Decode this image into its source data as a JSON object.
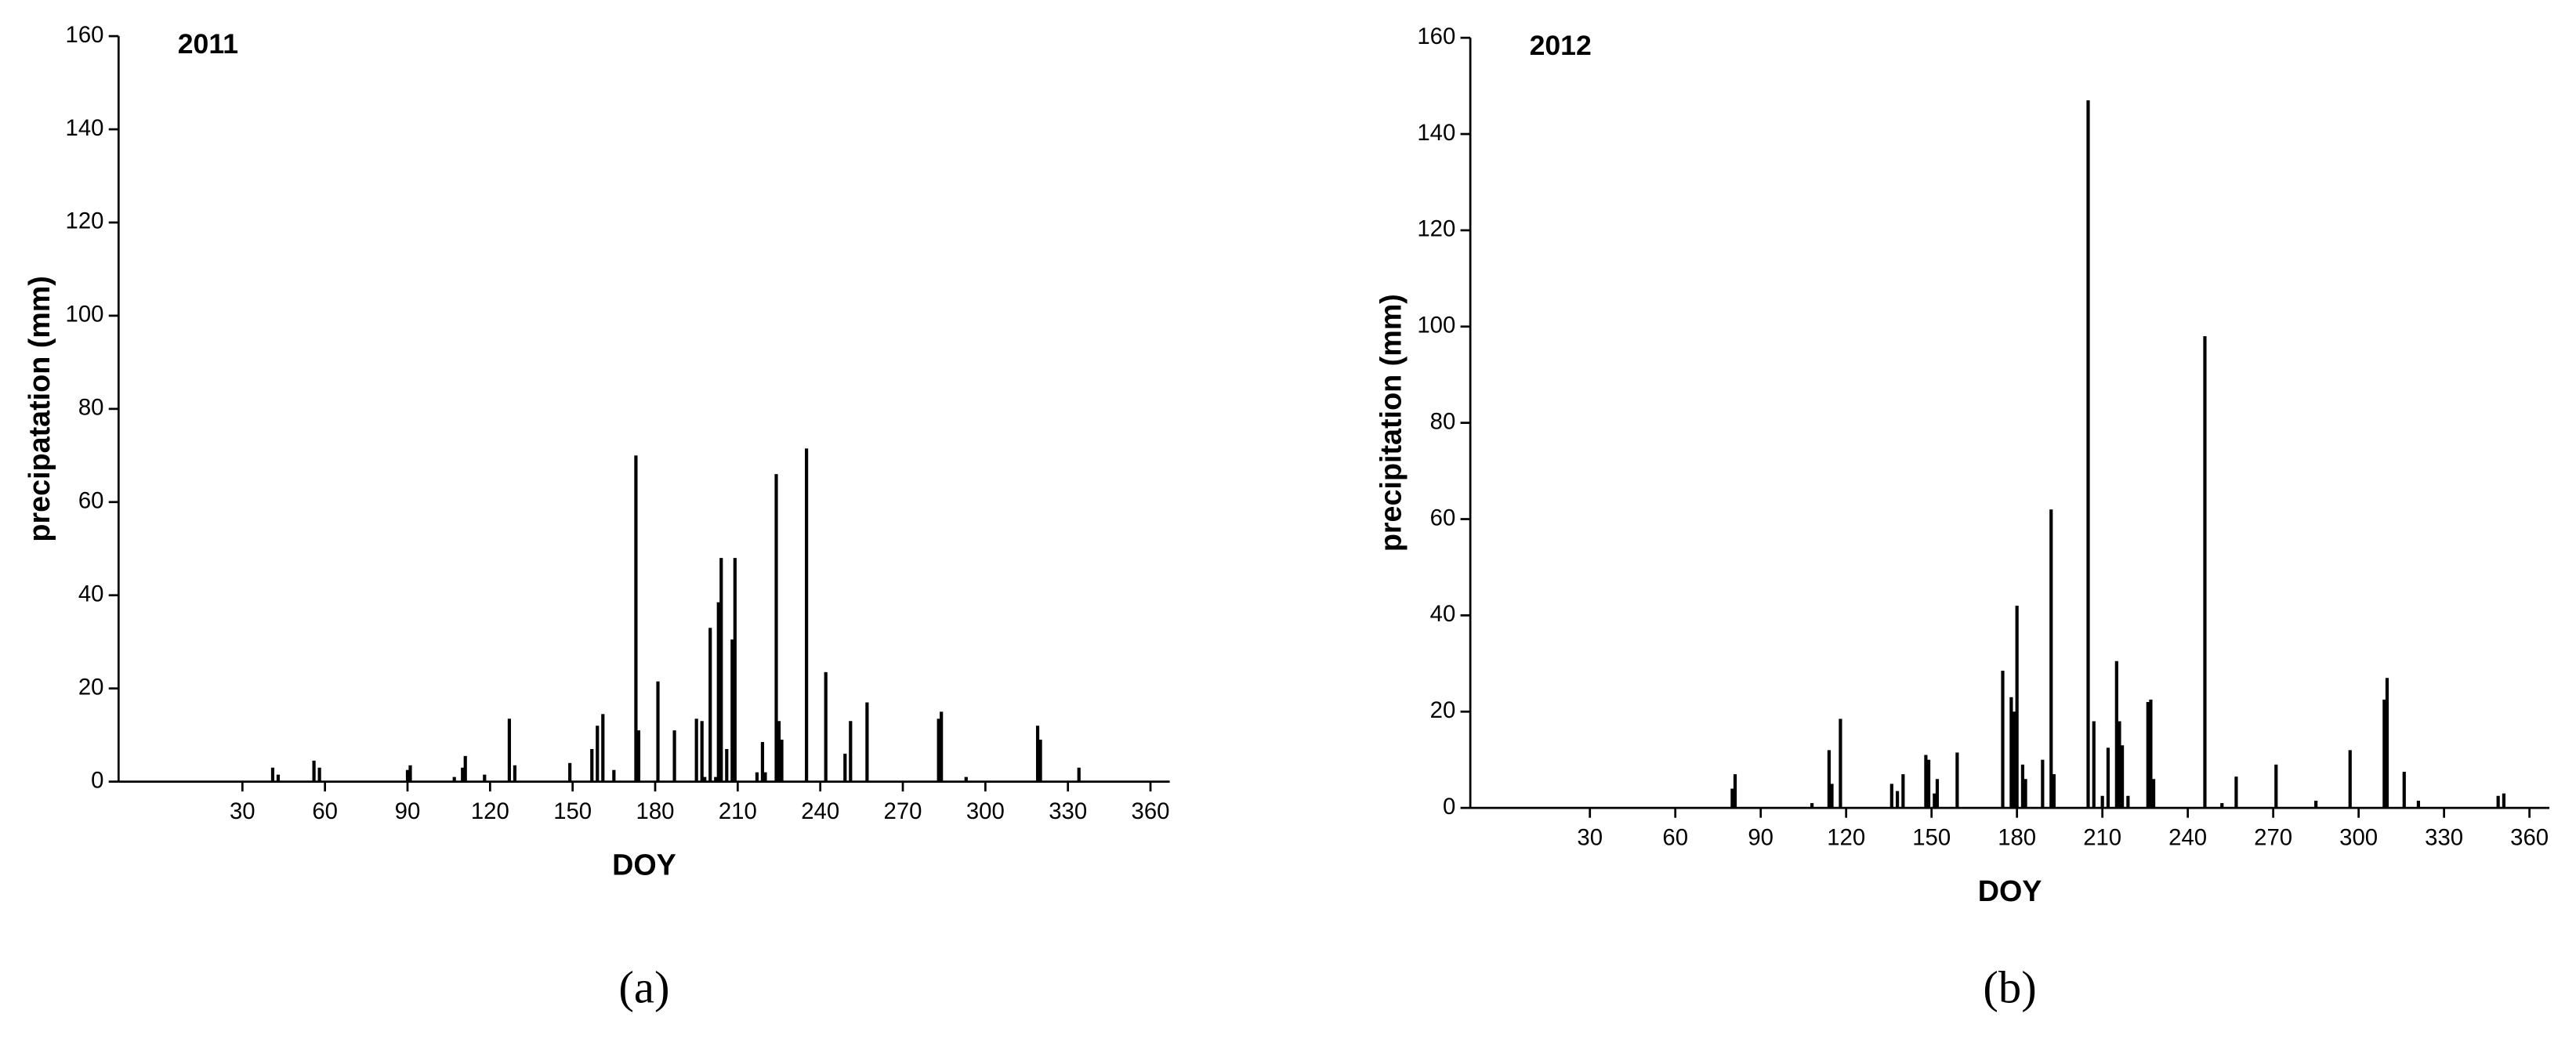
{
  "chart_data": [
    {
      "type": "bar",
      "title": "2011",
      "x_label": "DOY",
      "y_label": "precipatation (mm)",
      "caption": "(a)",
      "color": "#000000",
      "x": [
        41,
        43,
        56,
        58,
        90,
        91,
        107,
        110,
        111,
        118,
        127,
        129,
        149,
        157,
        159,
        161,
        165,
        173,
        174,
        181,
        187,
        195,
        197,
        198,
        200,
        202,
        203,
        204,
        206,
        208,
        209,
        217,
        219,
        220,
        224,
        225,
        226,
        235,
        242,
        249,
        251,
        257,
        283,
        284,
        293,
        319,
        320,
        334
      ],
      "values": [
        3,
        1.5,
        4.5,
        3,
        2.5,
        3.5,
        1,
        3,
        5.5,
        1.5,
        13.5,
        3.5,
        4,
        7,
        12,
        14.5,
        2.5,
        70,
        11,
        21.5,
        11,
        13.5,
        13,
        1,
        33,
        1,
        38.5,
        48,
        7,
        30.5,
        48,
        2,
        8.5,
        2,
        66,
        13,
        9,
        71.5,
        23.5,
        6,
        13,
        17,
        13.5,
        15,
        1,
        12,
        9,
        3
      ],
      "xlim": [
        -15,
        367
      ],
      "ylim": [
        0,
        160
      ],
      "xticks": [
        30,
        60,
        90,
        120,
        150,
        180,
        210,
        240,
        270,
        300,
        330,
        360
      ],
      "yticks": [
        0,
        20,
        40,
        60,
        80,
        100,
        120,
        140,
        160
      ]
    },
    {
      "type": "bar",
      "title": "2012",
      "x_label": "DOY",
      "y_label": "precipitation (mm)",
      "caption": "(b)",
      "color": "#000000",
      "x": [
        80,
        81,
        108,
        114,
        115,
        118,
        136,
        138,
        140,
        148,
        149,
        151,
        152,
        159,
        175,
        178,
        179,
        180,
        182,
        183,
        189,
        192,
        193,
        205,
        207,
        210,
        212,
        215,
        216,
        217,
        219,
        226,
        227,
        228,
        246,
        252,
        257,
        271,
        285,
        297,
        309,
        310,
        316,
        321,
        349,
        351
      ],
      "values": [
        4,
        7,
        1,
        12,
        5,
        18.5,
        5,
        3.5,
        7,
        11,
        10,
        3,
        6,
        11.5,
        28.5,
        23,
        20,
        42,
        9,
        6,
        10,
        62,
        7,
        147,
        18,
        2.5,
        12.5,
        30.5,
        18,
        13,
        2.5,
        22,
        22.5,
        6,
        98,
        1,
        6.5,
        9,
        1.5,
        12,
        22.5,
        27,
        7.5,
        1.5,
        2.5,
        3
      ],
      "xlim": [
        -12,
        367
      ],
      "ylim": [
        0,
        160
      ],
      "xticks": [
        30,
        60,
        90,
        120,
        150,
        180,
        210,
        240,
        270,
        300,
        330,
        360
      ],
      "yticks": [
        0,
        20,
        40,
        60,
        80,
        100,
        120,
        140,
        160
      ]
    }
  ]
}
